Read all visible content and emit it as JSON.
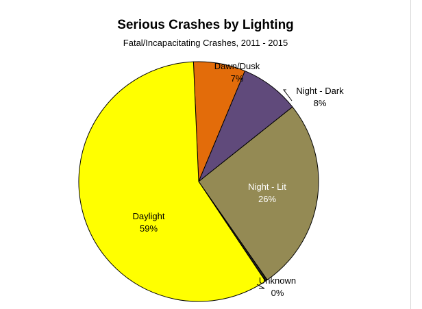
{
  "chart_data": {
    "type": "pie",
    "title": "Serious Crashes by Lighting",
    "subtitle": "Fatal/Incapacitating Crashes, 2011 - 2015",
    "slices": [
      {
        "label": "Dawn/Dusk",
        "percent_label": "7%",
        "value": 7.0,
        "color": "#e36c0a",
        "label_color": "#000000"
      },
      {
        "label": "Night - Dark",
        "percent_label": "8%",
        "value": 8.0,
        "color": "#604a7b",
        "label_color": "#000000"
      },
      {
        "label": "Night - Lit",
        "percent_label": "26%",
        "value": 26.0,
        "color": "#948a54",
        "label_color": "#ffffff"
      },
      {
        "label": "Unknown",
        "percent_label": "0%",
        "value": 0.3,
        "color": "#1f1f1f",
        "label_color": "#000000"
      },
      {
        "label": "Daylight",
        "percent_label": "59%",
        "value": 58.7,
        "color": "#ffff00",
        "label_color": "#000000"
      }
    ],
    "start_angle_deg": -2.5,
    "direction": "clockwise"
  }
}
